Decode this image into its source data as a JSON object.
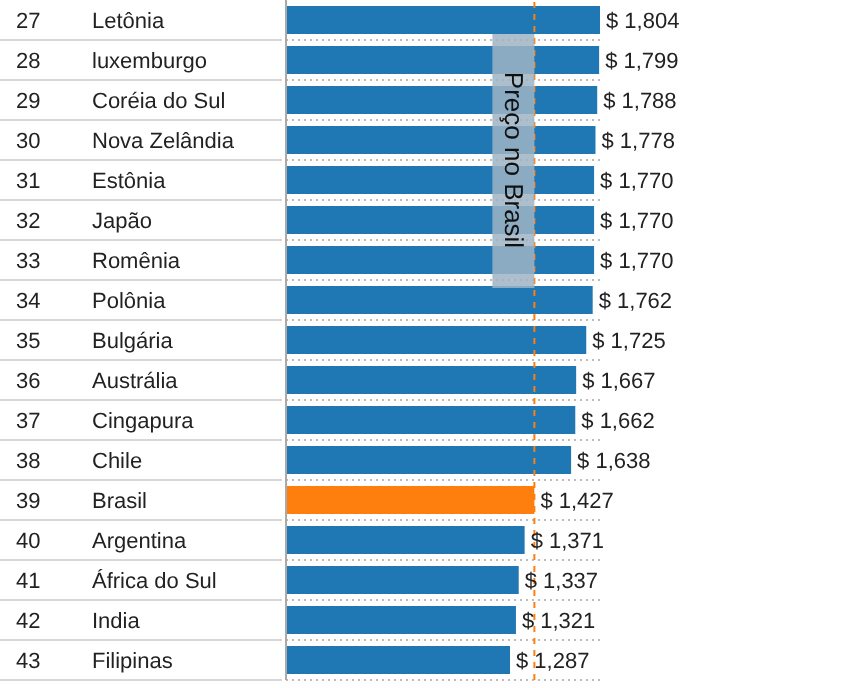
{
  "chart_data": {
    "type": "bar",
    "orientation": "horizontal",
    "categories": [
      "27 Letônia",
      "28 luxemburgo",
      "29 Coréia do Sul",
      "30 Nova Zelândia",
      "31 Estônia",
      "32 Japão",
      "33 Romênia",
      "34 Polônia",
      "35 Bulgária",
      "36 Austrália",
      "37 Cingapura",
      "38 Chile",
      "39 Brasil",
      "40 Argentina",
      "41 África do Sul",
      "42 India",
      "43 Filipinas"
    ],
    "values": [
      1804,
      1799,
      1788,
      1778,
      1770,
      1770,
      1770,
      1762,
      1725,
      1667,
      1662,
      1638,
      1427,
      1371,
      1337,
      1321,
      1287
    ],
    "colors": [
      "#1f77b4",
      "#1f77b4",
      "#1f77b4",
      "#1f77b4",
      "#1f77b4",
      "#1f77b4",
      "#1f77b4",
      "#1f77b4",
      "#1f77b4",
      "#1f77b4",
      "#1f77b4",
      "#1f77b4",
      "#ff7f0e",
      "#1f77b4",
      "#1f77b4",
      "#1f77b4",
      "#1f77b4"
    ],
    "value_labels": [
      "$ 1,804",
      "$ 1,799",
      "$ 1,788",
      "$ 1,778",
      "$ 1,770",
      "$ 1,770",
      "$ 1,770",
      "$ 1,762",
      "$ 1,725",
      "$ 1,667",
      "$ 1,662",
      "$ 1,638",
      "$ 1,427",
      "$ 1,371",
      "$ 1,337",
      "$ 1,321",
      "$ 1,287"
    ],
    "ref_lines": [
      {
        "axis": "x",
        "value": 1427,
        "label": "Preço no Brasil",
        "color": "#ff7f0e",
        "line_style": "dashed"
      }
    ],
    "grid": "y"
  }
}
